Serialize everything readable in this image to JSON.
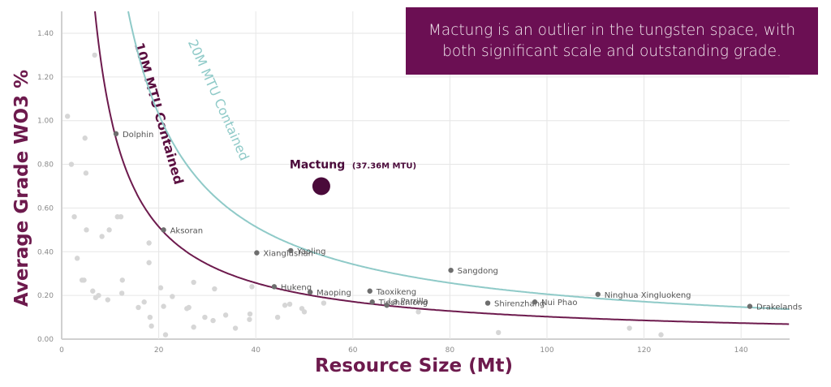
{
  "chart_data": {
    "type": "scatter",
    "title": "",
    "xlabel": "Resource Size (Mt)",
    "ylabel": "Average Grade WO3 %",
    "xlim": [
      0,
      150
    ],
    "ylim": [
      0,
      1.5
    ],
    "xticks": [
      0,
      20,
      40,
      60,
      80,
      100,
      120,
      140
    ],
    "xtick_labels": [
      "0",
      "20",
      "40",
      "60",
      "80",
      "100",
      "120",
      "140"
    ],
    "yticks": [
      0,
      0.2,
      0.4,
      0.6,
      0.8,
      1.0,
      1.2,
      1.4
    ],
    "ytick_labels": [
      "0.00",
      "0.20",
      "0.40",
      "0.60",
      "0.80",
      "1.00",
      "1.20",
      "1.40"
    ],
    "grid": true,
    "highlight": {
      "name": "Mactung",
      "annotation": "(37.36M MTU)",
      "x": 53.5,
      "y": 0.7,
      "color": "#4a0a3a"
    },
    "labeled_points": [
      {
        "name": "Dolphin",
        "x": 11.2,
        "y": 0.94
      },
      {
        "name": "Aksoran",
        "x": 21.0,
        "y": 0.5
      },
      {
        "name": "Xianglushan",
        "x": 40.2,
        "y": 0.395
      },
      {
        "name": "Yaoling",
        "x": 47.2,
        "y": 0.405
      },
      {
        "name": "Hukeng",
        "x": 43.8,
        "y": 0.24
      },
      {
        "name": "Maoping",
        "x": 51.2,
        "y": 0.215
      },
      {
        "name": "Taoxikeng",
        "x": 63.5,
        "y": 0.22
      },
      {
        "name": "Tieshanlong",
        "x": 64.0,
        "y": 0.17
      },
      {
        "name": "La Parrilla",
        "x": 67.0,
        "y": 0.155
      },
      {
        "name": "Sangdong",
        "x": 80.2,
        "y": 0.315
      },
      {
        "name": "Shirenzhang",
        "x": 87.8,
        "y": 0.165
      },
      {
        "name": "Nui Phao",
        "x": 97.5,
        "y": 0.17
      },
      {
        "name": "Ninghua Xingluokeng",
        "x": 110.5,
        "y": 0.205
      },
      {
        "name": "Drakelands",
        "x": 141.8,
        "y": 0.15
      }
    ],
    "unlabeled_points": [
      [
        1.2,
        1.02
      ],
      [
        2.0,
        0.8
      ],
      [
        4.8,
        0.92
      ],
      [
        5.0,
        0.76
      ],
      [
        6.8,
        1.3
      ],
      [
        2.6,
        0.56
      ],
      [
        3.2,
        0.37
      ],
      [
        4.2,
        0.27
      ],
      [
        4.6,
        0.27
      ],
      [
        5.1,
        0.5
      ],
      [
        6.4,
        0.22
      ],
      [
        7.0,
        0.19
      ],
      [
        7.6,
        0.2
      ],
      [
        8.3,
        0.47
      ],
      [
        9.5,
        0.18
      ],
      [
        9.8,
        0.5
      ],
      [
        11.5,
        0.56
      ],
      [
        12.2,
        0.56
      ],
      [
        12.5,
        0.27
      ],
      [
        12.4,
        0.21
      ],
      [
        15.8,
        0.145
      ],
      [
        17.0,
        0.17
      ],
      [
        18.0,
        0.44
      ],
      [
        18.0,
        0.35
      ],
      [
        18.2,
        0.1
      ],
      [
        18.5,
        0.06
      ],
      [
        20.4,
        0.235
      ],
      [
        21.0,
        0.15
      ],
      [
        21.4,
        0.02
      ],
      [
        22.8,
        0.195
      ],
      [
        25.8,
        0.14
      ],
      [
        26.2,
        0.145
      ],
      [
        27.2,
        0.26
      ],
      [
        27.2,
        0.055
      ],
      [
        29.5,
        0.1
      ],
      [
        31.2,
        0.085
      ],
      [
        31.5,
        0.23
      ],
      [
        33.8,
        0.11
      ],
      [
        35.8,
        0.05
      ],
      [
        38.7,
        0.09
      ],
      [
        38.8,
        0.115
      ],
      [
        39.2,
        0.24
      ],
      [
        44.5,
        0.1
      ],
      [
        46.0,
        0.155
      ],
      [
        47.0,
        0.16
      ],
      [
        49.5,
        0.14
      ],
      [
        50.0,
        0.125
      ],
      [
        54.0,
        0.165
      ],
      [
        73.5,
        0.125
      ],
      [
        90.0,
        0.03
      ],
      [
        117.0,
        0.05
      ],
      [
        123.5,
        0.02
      ]
    ],
    "curves": [
      {
        "name": "10M MTU Contained",
        "contained_mtu": 10,
        "color": "#6d1a4d",
        "label_color": "#5a0f40"
      },
      {
        "name": "20M MTU Contained",
        "contained_mtu": 20,
        "color": "#8fcac8",
        "label_color": "#8fcac8"
      }
    ]
  },
  "callout": {
    "text": "Mactung is an outlier in the tungsten space, with both significant scale and outstanding grade.",
    "background": "#6b0f53"
  }
}
